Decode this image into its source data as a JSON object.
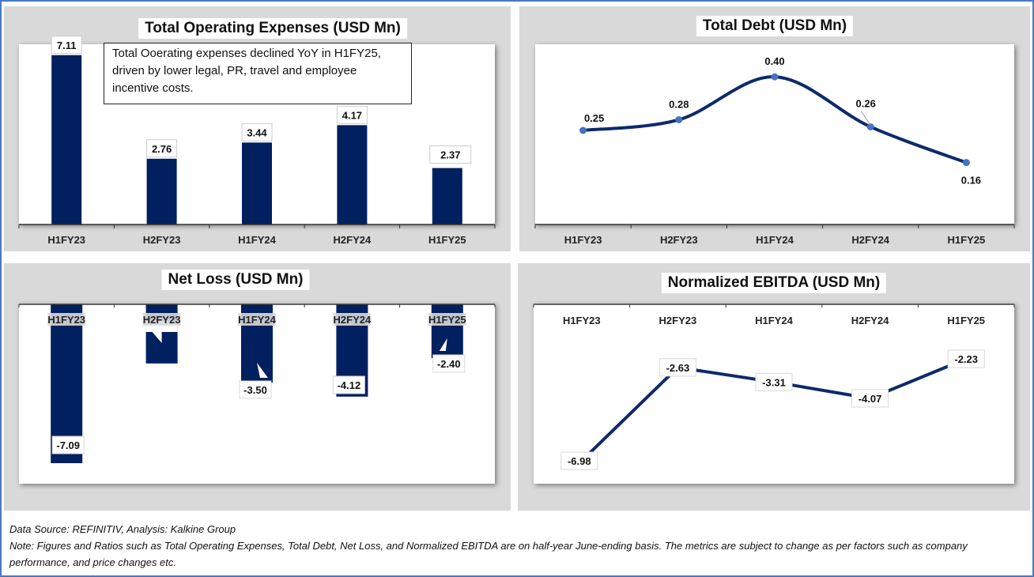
{
  "footer": {
    "source": "Data Source: REFINITIV, Analysis: Kalkine Group",
    "note": "Note: Figures and Ratios such as Total Operating Expenses, Total Debt, Net Loss, and Normalized EBITDA are on half-year June-ending basis. The metrics are subject to change as per factors such as company performance, and price changes etc."
  },
  "colors": {
    "bar": "#002060",
    "line": "#0d2a6b",
    "marker": "#4472c4",
    "panel_bg": "#d9d9d9",
    "frame": "#4a78c0"
  },
  "chart_data": [
    {
      "id": "opex",
      "type": "bar",
      "title": "Total Operating Expenses (USD Mn)",
      "categories": [
        "H1FY23",
        "H2FY23",
        "H1FY24",
        "H2FY24",
        "H1FY25"
      ],
      "values": [
        7.11,
        2.76,
        3.44,
        4.17,
        2.37
      ],
      "labels": [
        "7.11",
        "2.76",
        "3.44",
        "4.17",
        "2.37"
      ],
      "ylim": [
        0,
        7.5
      ],
      "grid": false,
      "annotation": "Total Ooerating expenses declined YoY in H1FY25, driven by lower legal, PR, travel and employee incentive costs."
    },
    {
      "id": "debt",
      "type": "line",
      "title": "Total Debt (USD Mn)",
      "categories": [
        "H1FY23",
        "H2FY23",
        "H1FY24",
        "H2FY24",
        "H1FY25"
      ],
      "values": [
        0.25,
        0.28,
        0.4,
        0.26,
        0.16
      ],
      "labels": [
        "0.25",
        "0.28",
        "0.40",
        "0.26",
        "0.16"
      ],
      "smooth": true,
      "ylim": [
        0,
        0.45
      ],
      "grid": false
    },
    {
      "id": "netloss",
      "type": "bar",
      "title": "Net Loss (USD Mn)",
      "categories": [
        "H1FY23",
        "H2FY23",
        "H1FY24",
        "H2FY24",
        "H1FY25"
      ],
      "values": [
        -7.09,
        -2.64,
        -3.5,
        -4.12,
        -2.4
      ],
      "labels": [
        "-7.09",
        "",
        "-3.50",
        "-4.12",
        "-2.40"
      ],
      "ylim": [
        -8.5,
        0
      ],
      "grid": false
    },
    {
      "id": "ebitda",
      "type": "line",
      "title": "Normalized EBITDA (USD Mn)",
      "categories": [
        "H1FY23",
        "H2FY23",
        "H1FY24",
        "H2FY24",
        "H1FY25"
      ],
      "values": [
        -6.98,
        -2.63,
        -3.31,
        -4.07,
        -2.23
      ],
      "labels": [
        "-6.98",
        "-2.63",
        "-3.31",
        "-4.07",
        "-2.23"
      ],
      "smooth": false,
      "ylim": [
        -8,
        0
      ],
      "grid": false
    }
  ]
}
